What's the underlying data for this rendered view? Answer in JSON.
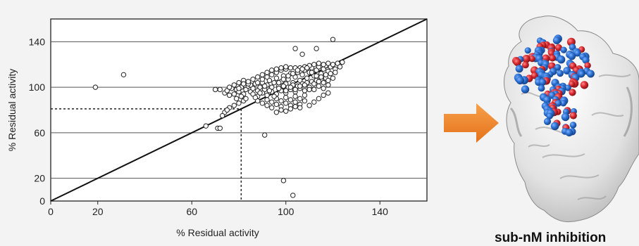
{
  "chart_data": {
    "type": "scatter",
    "xlabel": "% Residual activity",
    "ylabel": "% Residual activity",
    "xlim": [
      0,
      160
    ],
    "ylim": [
      0,
      160
    ],
    "xticks": [
      0,
      20,
      60,
      100,
      140
    ],
    "yticks": [
      0,
      20,
      60,
      100,
      140
    ],
    "grid": "horizontal",
    "identity_line": true,
    "threshold_x": 81,
    "threshold_y": 81,
    "points": [
      [
        19,
        100
      ],
      [
        31,
        111
      ],
      [
        66,
        66
      ],
      [
        71,
        64
      ],
      [
        72,
        64
      ],
      [
        91,
        58
      ],
      [
        99,
        18
      ],
      [
        103,
        5
      ],
      [
        104,
        134
      ],
      [
        107,
        129
      ],
      [
        113,
        134
      ],
      [
        120,
        142
      ],
      [
        70,
        98
      ],
      [
        72,
        98
      ],
      [
        74,
        95
      ],
      [
        75,
        97
      ],
      [
        76,
        93
      ],
      [
        77,
        99
      ],
      [
        78,
        94
      ],
      [
        79,
        98
      ],
      [
        80,
        96
      ],
      [
        81,
        100
      ],
      [
        82,
        94
      ],
      [
        83,
        98
      ],
      [
        84,
        101
      ],
      [
        85,
        96
      ],
      [
        86,
        99
      ],
      [
        87,
        103
      ],
      [
        88,
        97
      ],
      [
        89,
        100
      ],
      [
        90,
        104
      ],
      [
        91,
        98
      ],
      [
        92,
        102
      ],
      [
        93,
        106
      ],
      [
        94,
        100
      ],
      [
        95,
        104
      ],
      [
        96,
        108
      ],
      [
        97,
        101
      ],
      [
        98,
        105
      ],
      [
        99,
        110
      ],
      [
        100,
        103
      ],
      [
        101,
        107
      ],
      [
        102,
        112
      ],
      [
        103,
        104
      ],
      [
        104,
        109
      ],
      [
        105,
        113
      ],
      [
        106,
        106
      ],
      [
        107,
        111
      ],
      [
        108,
        115
      ],
      [
        109,
        108
      ],
      [
        110,
        113
      ],
      [
        111,
        117
      ],
      [
        112,
        110
      ],
      [
        113,
        115
      ],
      [
        114,
        118
      ],
      [
        115,
        112
      ],
      [
        116,
        116
      ],
      [
        117,
        119
      ],
      [
        118,
        114
      ],
      [
        119,
        118
      ],
      [
        120,
        120
      ],
      [
        121,
        116
      ],
      [
        122,
        121
      ],
      [
        123,
        118
      ],
      [
        124,
        122
      ],
      [
        85,
        102
      ],
      [
        88,
        104
      ],
      [
        90,
        107
      ],
      [
        92,
        109
      ],
      [
        94,
        111
      ],
      [
        96,
        113
      ],
      [
        98,
        115
      ],
      [
        100,
        116
      ],
      [
        102,
        117
      ],
      [
        104,
        117
      ],
      [
        106,
        117
      ],
      [
        108,
        118
      ],
      [
        110,
        119
      ],
      [
        112,
        120
      ],
      [
        114,
        121
      ],
      [
        116,
        120
      ],
      [
        118,
        121
      ],
      [
        86,
        94
      ],
      [
        88,
        92
      ],
      [
        90,
        95
      ],
      [
        92,
        93
      ],
      [
        94,
        96
      ],
      [
        96,
        94
      ],
      [
        98,
        97
      ],
      [
        100,
        95
      ],
      [
        102,
        98
      ],
      [
        104,
        96
      ],
      [
        106,
        99
      ],
      [
        108,
        97
      ],
      [
        110,
        100
      ],
      [
        112,
        98
      ],
      [
        114,
        101
      ],
      [
        116,
        99
      ],
      [
        118,
        102
      ],
      [
        88,
        88
      ],
      [
        90,
        86
      ],
      [
        92,
        89
      ],
      [
        94,
        87
      ],
      [
        96,
        90
      ],
      [
        98,
        88
      ],
      [
        100,
        91
      ],
      [
        102,
        89
      ],
      [
        104,
        92
      ],
      [
        106,
        90
      ],
      [
        108,
        93
      ],
      [
        92,
        84
      ],
      [
        94,
        82
      ],
      [
        96,
        85
      ],
      [
        98,
        83
      ],
      [
        100,
        86
      ],
      [
        102,
        84
      ],
      [
        104,
        87
      ],
      [
        106,
        85
      ],
      [
        108,
        88
      ],
      [
        80,
        104
      ],
      [
        82,
        106
      ],
      [
        84,
        103
      ],
      [
        86,
        107
      ],
      [
        88,
        109
      ],
      [
        90,
        111
      ],
      [
        92,
        113
      ],
      [
        94,
        115
      ],
      [
        96,
        116
      ],
      [
        98,
        117
      ],
      [
        100,
        118
      ],
      [
        76,
        100
      ],
      [
        78,
        102
      ],
      [
        80,
        99
      ],
      [
        82,
        103
      ],
      [
        84,
        105
      ],
      [
        78,
        84
      ],
      [
        80,
        86
      ],
      [
        82,
        88
      ],
      [
        76,
        82
      ],
      [
        74,
        78
      ],
      [
        73,
        75
      ],
      [
        75,
        80
      ],
      [
        79,
        90
      ],
      [
        81,
        92
      ],
      [
        83,
        90
      ],
      [
        95,
        92
      ],
      [
        97,
        99
      ],
      [
        99,
        101
      ],
      [
        101,
        100
      ],
      [
        103,
        102
      ],
      [
        105,
        101
      ],
      [
        107,
        103
      ],
      [
        109,
        104
      ],
      [
        111,
        105
      ],
      [
        113,
        106
      ],
      [
        115,
        107
      ],
      [
        117,
        108
      ],
      [
        93,
        97
      ],
      [
        91,
        101
      ],
      [
        89,
        95
      ],
      [
        87,
        91
      ],
      [
        97,
        104
      ],
      [
        99,
        107
      ],
      [
        101,
        110
      ],
      [
        103,
        112
      ],
      [
        105,
        115
      ],
      [
        107,
        116
      ],
      [
        109,
        117
      ],
      [
        111,
        113
      ],
      [
        113,
        110
      ],
      [
        115,
        109
      ],
      [
        117,
        111
      ],
      [
        119,
        112
      ],
      [
        121,
        113
      ],
      [
        96,
        78
      ],
      [
        98,
        80
      ],
      [
        100,
        79
      ],
      [
        102,
        81
      ],
      [
        104,
        83
      ],
      [
        106,
        82
      ],
      [
        110,
        84
      ],
      [
        112,
        87
      ],
      [
        114,
        90
      ],
      [
        116,
        93
      ],
      [
        118,
        95
      ],
      [
        100,
        97
      ],
      [
        102,
        100
      ],
      [
        104,
        98
      ],
      [
        106,
        101
      ],
      [
        108,
        102
      ],
      [
        110,
        98
      ],
      [
        112,
        103
      ],
      [
        114,
        105
      ],
      [
        116,
        104
      ],
      [
        118,
        106
      ],
      [
        120,
        108
      ]
    ]
  },
  "caption": "sub-nM inhibition",
  "colors": {
    "background": "#f3f3f4",
    "plot_background": "#ffffff",
    "arrow": "#f0862a",
    "atom_blue": "#2a6fd0",
    "atom_red": "#d7282f",
    "surface": "#e6e6e6"
  },
  "icons": {
    "arrow": "right-arrow-icon",
    "structure": "protein-structure-image"
  }
}
